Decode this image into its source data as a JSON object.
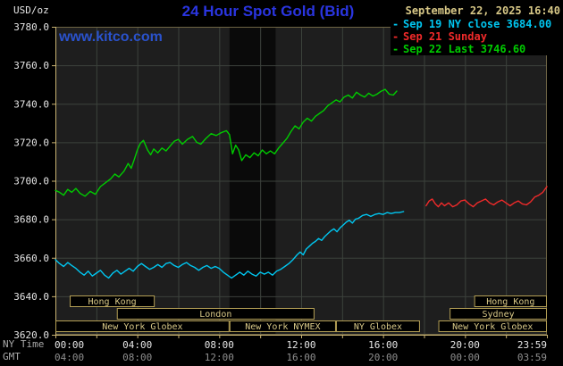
{
  "header": {
    "date": "September 22, 2025 16:40",
    "watermark": "www.kitco.com"
  },
  "axis_labels": {
    "ny_time": "NY Time",
    "gmt": "GMT"
  },
  "legend": {
    "items": [
      {
        "marker": "-",
        "label": "Sep 19 NY close 3684.00",
        "color": "#00c6f0"
      },
      {
        "marker": "-",
        "label": "Sep 21 Sunday",
        "color": "#f02a2a"
      },
      {
        "marker": "-",
        "label": "Sep 22 Last 3746.60",
        "color": "#00cc00"
      }
    ]
  },
  "colors": {
    "plot_bg": "#1e1e1e",
    "band": "#0a0a0a",
    "grid": "#3c423c",
    "frame": "#6e6444",
    "axis": "#c8b272",
    "y_label": "#e6e6e6",
    "x_label": "#e6e6e6",
    "gmt_label": "#8f8f8f",
    "side_label": "#aaaaaa",
    "session_border": "#b49f55",
    "session_text": "#d8c887",
    "title": "#2a35e0",
    "date": "#d8c887",
    "watermark": "#2a52cc"
  },
  "chart_data": {
    "type": "line",
    "title": "24 Hour Spot Gold (Bid)",
    "grid": true,
    "legend_position": "top-right",
    "x_axis": {
      "range_hours": [
        0,
        24
      ],
      "grid_step_hours": 2,
      "tick_hours": [
        0,
        4,
        8,
        12,
        16,
        20,
        24
      ],
      "ticks_ny": [
        "00:00",
        "04:00",
        "08:00",
        "12:00",
        "16:00",
        "20:00",
        "23:59"
      ],
      "ticks_gmt": [
        "04:00",
        "08:00",
        "12:00",
        "16:00",
        "20:00",
        "00:00",
        "03:59"
      ]
    },
    "y_axis": {
      "unit": "USD/oz",
      "range": [
        3620,
        3780
      ],
      "tick_step": 20,
      "ticks": [
        "3780.0",
        "3760.0",
        "3740.0",
        "3720.0",
        "3700.0",
        "3680.0",
        "3660.0",
        "3640.0",
        "3620.0"
      ]
    },
    "shaded_band_hours": [
      8.5,
      10.75
    ],
    "sessions": [
      {
        "label": "Hong Kong",
        "row": 0,
        "start": 0.7,
        "end": 4.85
      },
      {
        "label": "Hong Kong",
        "row": 0,
        "start": 20.45,
        "end": 24
      },
      {
        "label": "London",
        "row": 1,
        "start": 3.0,
        "end": 12.65
      },
      {
        "label": "Sydney",
        "row": 1,
        "start": 19.25,
        "end": 24
      },
      {
        "label": "New York Globex",
        "row": 2,
        "start": 0,
        "end": 8.5
      },
      {
        "label": "New York NYMEX",
        "row": 2,
        "start": 8.5,
        "end": 13.7
      },
      {
        "label": "NY Globex",
        "row": 2,
        "start": 13.7,
        "end": 17.8
      },
      {
        "label": "New York Globex",
        "row": 2,
        "start": 18.7,
        "end": 24
      }
    ],
    "series": [
      {
        "name": "Sep 19 NY close",
        "close_value": 3684.0,
        "color": "#00c6f0",
        "points": [
          [
            0.0,
            3659
          ],
          [
            0.2,
            3657
          ],
          [
            0.4,
            3655.5
          ],
          [
            0.6,
            3657.5
          ],
          [
            0.8,
            3656
          ],
          [
            1.0,
            3654.5
          ],
          [
            1.2,
            3652.5
          ],
          [
            1.4,
            3651
          ],
          [
            1.6,
            3653
          ],
          [
            1.8,
            3650.5
          ],
          [
            2.0,
            3652
          ],
          [
            2.2,
            3653.5
          ],
          [
            2.4,
            3651
          ],
          [
            2.6,
            3649.5
          ],
          [
            2.8,
            3652
          ],
          [
            3.0,
            3653.5
          ],
          [
            3.2,
            3651.5
          ],
          [
            3.4,
            3653
          ],
          [
            3.6,
            3654.5
          ],
          [
            3.8,
            3653
          ],
          [
            4.0,
            3655.5
          ],
          [
            4.2,
            3657
          ],
          [
            4.4,
            3655.5
          ],
          [
            4.6,
            3654
          ],
          [
            4.8,
            3655
          ],
          [
            5.0,
            3656.5
          ],
          [
            5.2,
            3655
          ],
          [
            5.4,
            3657
          ],
          [
            5.6,
            3657.5
          ],
          [
            5.8,
            3656
          ],
          [
            6.0,
            3655
          ],
          [
            6.2,
            3656.5
          ],
          [
            6.4,
            3657.5
          ],
          [
            6.6,
            3656
          ],
          [
            6.8,
            3655
          ],
          [
            7.0,
            3653.5
          ],
          [
            7.2,
            3655
          ],
          [
            7.4,
            3656
          ],
          [
            7.6,
            3654.5
          ],
          [
            7.8,
            3655.5
          ],
          [
            8.0,
            3654.5
          ],
          [
            8.2,
            3652.5
          ],
          [
            8.4,
            3651
          ],
          [
            8.6,
            3649.5
          ],
          [
            8.8,
            3651
          ],
          [
            9.0,
            3652.5
          ],
          [
            9.2,
            3651
          ],
          [
            9.4,
            3653
          ],
          [
            9.6,
            3651.5
          ],
          [
            9.8,
            3650.5
          ],
          [
            10.0,
            3652.5
          ],
          [
            10.2,
            3651.5
          ],
          [
            10.4,
            3652.5
          ],
          [
            10.6,
            3651
          ],
          [
            10.8,
            3653
          ],
          [
            11.0,
            3654
          ],
          [
            11.2,
            3655.5
          ],
          [
            11.4,
            3657
          ],
          [
            11.6,
            3659
          ],
          [
            11.8,
            3661.5
          ],
          [
            11.95,
            3663
          ],
          [
            12.1,
            3661.5
          ],
          [
            12.25,
            3664.5
          ],
          [
            12.4,
            3666
          ],
          [
            12.55,
            3667.5
          ],
          [
            12.7,
            3668.5
          ],
          [
            12.85,
            3670
          ],
          [
            13.0,
            3669
          ],
          [
            13.15,
            3671
          ],
          [
            13.3,
            3672.5
          ],
          [
            13.45,
            3674
          ],
          [
            13.6,
            3675
          ],
          [
            13.75,
            3673.5
          ],
          [
            13.9,
            3675.5
          ],
          [
            14.05,
            3677
          ],
          [
            14.2,
            3678.5
          ],
          [
            14.35,
            3679.5
          ],
          [
            14.5,
            3678
          ],
          [
            14.65,
            3680
          ],
          [
            14.8,
            3680.5
          ],
          [
            15.0,
            3682
          ],
          [
            15.2,
            3682.5
          ],
          [
            15.4,
            3681.5
          ],
          [
            15.6,
            3682.5
          ],
          [
            15.8,
            3683
          ],
          [
            16.0,
            3682.5
          ],
          [
            16.2,
            3683.5
          ],
          [
            16.4,
            3683
          ],
          [
            16.6,
            3683.5
          ],
          [
            16.8,
            3683.5
          ],
          [
            17.0,
            3684
          ]
        ]
      },
      {
        "name": "Sep 21 Sunday",
        "color": "#f02a2a",
        "points": [
          [
            18.1,
            3687
          ],
          [
            18.25,
            3689.5
          ],
          [
            18.4,
            3690.5
          ],
          [
            18.55,
            3688
          ],
          [
            18.7,
            3686.5
          ],
          [
            18.85,
            3688.5
          ],
          [
            19.0,
            3687
          ],
          [
            19.2,
            3688.5
          ],
          [
            19.4,
            3686.5
          ],
          [
            19.6,
            3687.5
          ],
          [
            19.8,
            3689.5
          ],
          [
            20.0,
            3690
          ],
          [
            20.2,
            3688
          ],
          [
            20.4,
            3686.5
          ],
          [
            20.6,
            3688.5
          ],
          [
            20.8,
            3689.5
          ],
          [
            21.0,
            3690.5
          ],
          [
            21.2,
            3688.5
          ],
          [
            21.4,
            3687.5
          ],
          [
            21.6,
            3689
          ],
          [
            21.8,
            3690
          ],
          [
            22.0,
            3688.5
          ],
          [
            22.2,
            3687
          ],
          [
            22.4,
            3688.5
          ],
          [
            22.6,
            3689.5
          ],
          [
            22.8,
            3688
          ],
          [
            23.0,
            3687.5
          ],
          [
            23.2,
            3689
          ],
          [
            23.4,
            3691.5
          ],
          [
            23.6,
            3692.5
          ],
          [
            23.8,
            3694
          ],
          [
            24.0,
            3697
          ]
        ]
      },
      {
        "name": "Sep 22 Last",
        "last_value": 3746.6,
        "color": "#00cc00",
        "points": [
          [
            0.0,
            3695
          ],
          [
            0.2,
            3694
          ],
          [
            0.4,
            3692.5
          ],
          [
            0.6,
            3695.5
          ],
          [
            0.8,
            3694
          ],
          [
            1.0,
            3696
          ],
          [
            1.2,
            3693.5
          ],
          [
            1.45,
            3692
          ],
          [
            1.7,
            3694.5
          ],
          [
            1.95,
            3693
          ],
          [
            2.2,
            3697
          ],
          [
            2.45,
            3699
          ],
          [
            2.7,
            3701
          ],
          [
            2.9,
            3703.5
          ],
          [
            3.1,
            3702
          ],
          [
            3.35,
            3705
          ],
          [
            3.55,
            3709
          ],
          [
            3.7,
            3706.5
          ],
          [
            3.85,
            3711
          ],
          [
            4.0,
            3716
          ],
          [
            4.15,
            3719.5
          ],
          [
            4.3,
            3721
          ],
          [
            4.5,
            3716
          ],
          [
            4.65,
            3713.5
          ],
          [
            4.8,
            3716.5
          ],
          [
            5.0,
            3714.5
          ],
          [
            5.2,
            3717
          ],
          [
            5.4,
            3715.5
          ],
          [
            5.6,
            3718
          ],
          [
            5.8,
            3720.5
          ],
          [
            6.0,
            3721.5
          ],
          [
            6.2,
            3719
          ],
          [
            6.45,
            3721.5
          ],
          [
            6.7,
            3723
          ],
          [
            6.9,
            3720
          ],
          [
            7.1,
            3719
          ],
          [
            7.35,
            3722
          ],
          [
            7.6,
            3724.5
          ],
          [
            7.85,
            3723.5
          ],
          [
            8.1,
            3725
          ],
          [
            8.35,
            3726
          ],
          [
            8.5,
            3724
          ],
          [
            8.65,
            3714
          ],
          [
            8.8,
            3718.5
          ],
          [
            8.95,
            3716
          ],
          [
            9.1,
            3710.5
          ],
          [
            9.3,
            3713.5
          ],
          [
            9.5,
            3712
          ],
          [
            9.7,
            3714.5
          ],
          [
            9.9,
            3713
          ],
          [
            10.1,
            3716
          ],
          [
            10.3,
            3714
          ],
          [
            10.5,
            3715.5
          ],
          [
            10.7,
            3714
          ],
          [
            10.9,
            3717
          ],
          [
            11.1,
            3719.5
          ],
          [
            11.3,
            3722
          ],
          [
            11.5,
            3725.5
          ],
          [
            11.7,
            3728.5
          ],
          [
            11.9,
            3727
          ],
          [
            12.1,
            3730.5
          ],
          [
            12.3,
            3732.5
          ],
          [
            12.5,
            3731
          ],
          [
            12.7,
            3733.5
          ],
          [
            12.9,
            3735
          ],
          [
            13.1,
            3736.5
          ],
          [
            13.3,
            3739
          ],
          [
            13.5,
            3740.5
          ],
          [
            13.7,
            3742
          ],
          [
            13.9,
            3741
          ],
          [
            14.1,
            3743.5
          ],
          [
            14.3,
            3744.5
          ],
          [
            14.5,
            3743
          ],
          [
            14.7,
            3746
          ],
          [
            14.9,
            3744.5
          ],
          [
            15.1,
            3743.5
          ],
          [
            15.3,
            3745.5
          ],
          [
            15.5,
            3744
          ],
          [
            15.7,
            3745
          ],
          [
            15.9,
            3746.5
          ],
          [
            16.1,
            3747.5
          ],
          [
            16.3,
            3745
          ],
          [
            16.5,
            3744.5
          ],
          [
            16.67,
            3746.6
          ]
        ]
      }
    ]
  }
}
